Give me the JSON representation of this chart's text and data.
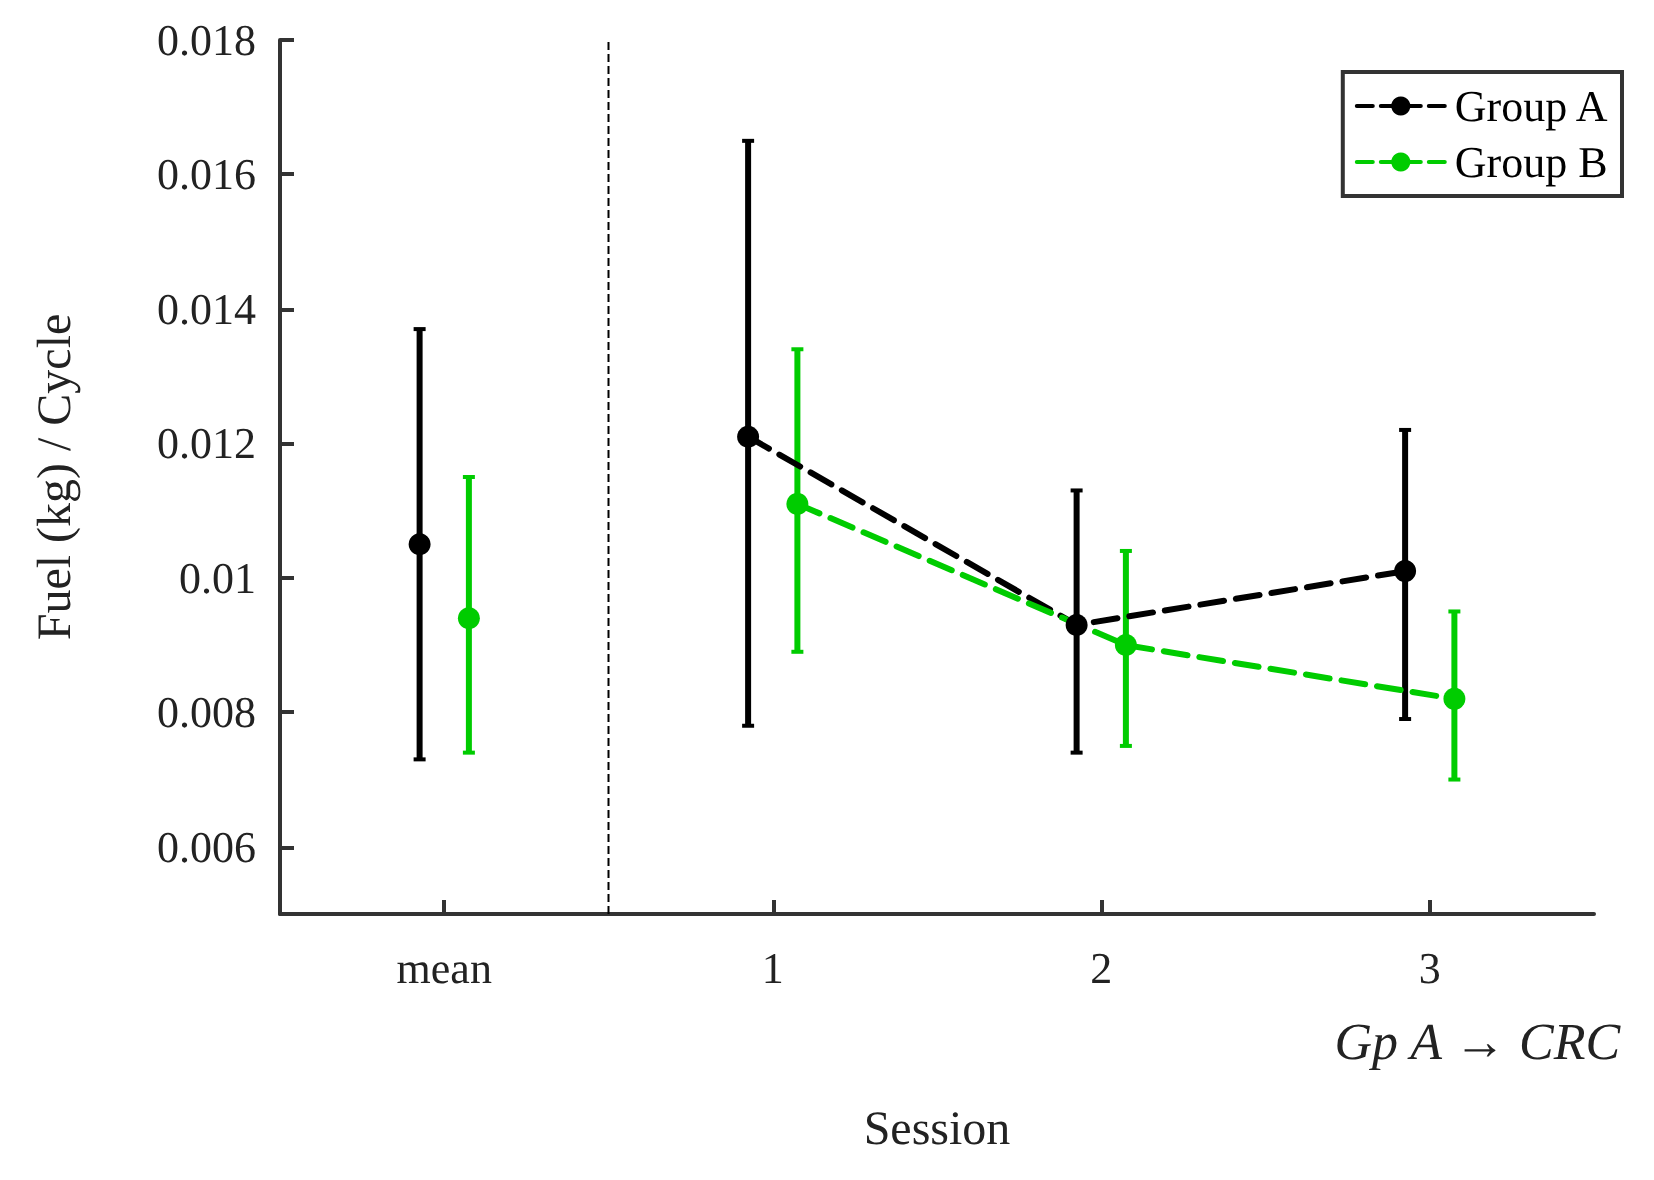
{
  "chart_data": {
    "type": "line",
    "xlabel": "Session",
    "ylabel": "Fuel (kg) / Cycle",
    "annotations": [
      "Gp A → CRC"
    ],
    "xlim": [
      -0.5,
      3.5
    ],
    "xticks": [
      {
        "value": 0,
        "label": "mean"
      },
      1,
      2,
      3
    ],
    "ylim": [
      0.005,
      0.018
    ],
    "yticks": [
      0.006,
      0.008,
      0.01,
      0.012,
      0.014,
      0.016,
      0.018
    ],
    "series": [
      {
        "name": "Group A",
        "color": "#000000",
        "x": [
          -0.075,
          0.5,
          0.925,
          1.925,
          2.925
        ],
        "values": [
          0.0105,
          null,
          0.0121,
          0.0093,
          0.0101
        ],
        "errors": [
          [
            0.0073,
            0.0137
          ],
          null,
          [
            0.0078,
            0.0165
          ],
          [
            0.0074,
            0.0113
          ],
          [
            0.0079,
            0.0122
          ]
        ]
      },
      {
        "name": "Group B",
        "color": "#00cc00",
        "x": [
          0.075,
          0.5,
          1.075,
          2.075,
          3.075
        ],
        "values": [
          0.0094,
          null,
          0.0111,
          0.009,
          0.0082
        ],
        "errors": [
          [
            0.0074,
            0.0115
          ],
          null,
          [
            0.0089,
            0.0134
          ],
          [
            0.0075,
            0.0104
          ],
          [
            0.007,
            0.0095
          ]
        ]
      }
    ],
    "ref_lines": [
      {
        "axis": "x",
        "value": 0.5,
        "color": "#000000",
        "line_style": "dashed"
      }
    ],
    "marker": "circle",
    "line_style": "dashed",
    "grid": false,
    "legend": "top right"
  }
}
